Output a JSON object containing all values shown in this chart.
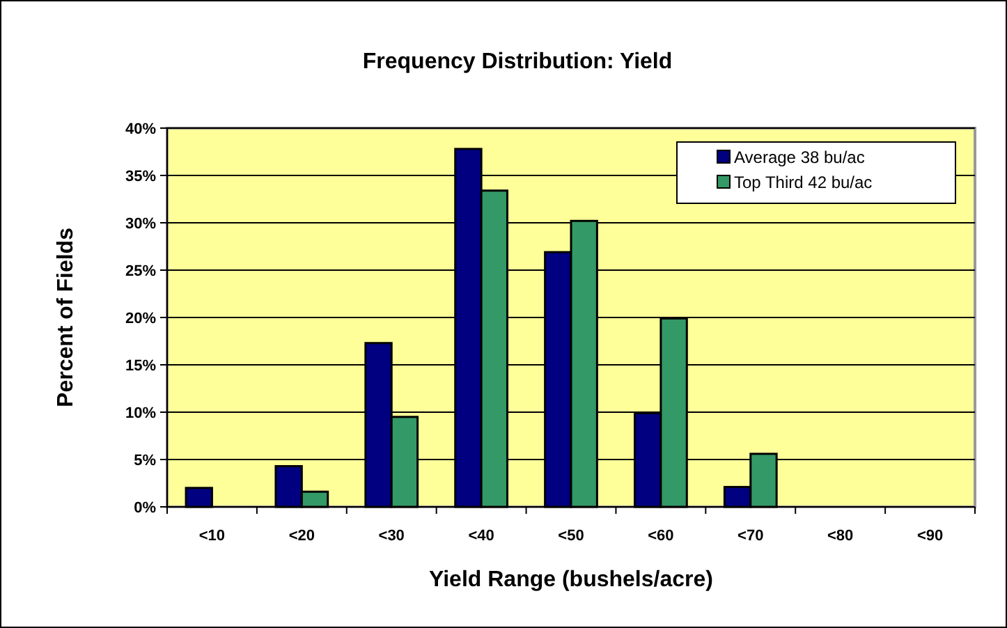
{
  "chart_data": {
    "type": "bar",
    "title": "Frequency Distribution: Yield",
    "xlabel": "Yield Range (bushels/acre)",
    "ylabel": "Percent of Fields",
    "categories": [
      "<10",
      "<20",
      "<30",
      "<40",
      "<50",
      "<60",
      "<70",
      "<80",
      "<90"
    ],
    "series": [
      {
        "name": "Average 38 bu/ac",
        "color": "#000080",
        "values": [
          2,
          4.3,
          17.3,
          37.8,
          26.9,
          9.9,
          2.1,
          0,
          0
        ]
      },
      {
        "name": "Top Third 42 bu/ac",
        "color": "#339966",
        "values": [
          0,
          1.6,
          9.5,
          33.4,
          30.2,
          19.9,
          5.6,
          0,
          0
        ]
      }
    ],
    "ylim": [
      0,
      40
    ],
    "yticks": [
      {
        "value": 0,
        "label": "0%"
      },
      {
        "value": 5,
        "label": "5%"
      },
      {
        "value": 10,
        "label": "10%"
      },
      {
        "value": 15,
        "label": "15%"
      },
      {
        "value": 20,
        "label": "20%"
      },
      {
        "value": 25,
        "label": "25%"
      },
      {
        "value": 30,
        "label": "30%"
      },
      {
        "value": 35,
        "label": "35%"
      },
      {
        "value": 40,
        "label": "40%"
      }
    ],
    "grid": "y",
    "legend": "top right"
  }
}
